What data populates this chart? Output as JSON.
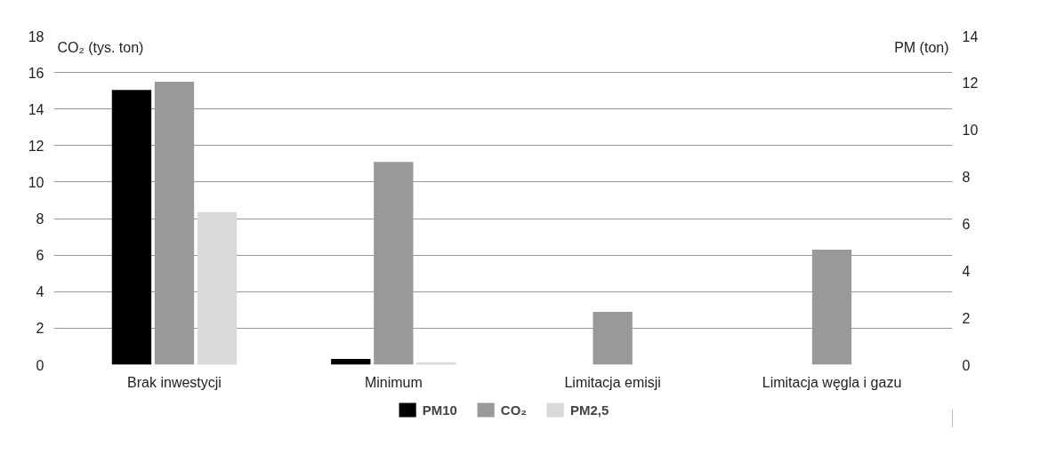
{
  "chart_data": {
    "type": "bar",
    "categories": [
      "Brak inwestycji",
      "Minimum",
      "Limitacja emisji",
      "Limitacja węgla i gazu"
    ],
    "ylabel": "CO₂ (tys. ton)",
    "y2label": "PM (ton)",
    "ylim": [
      0,
      18
    ],
    "yticks": [
      0,
      2,
      4,
      6,
      8,
      10,
      12,
      14,
      16,
      18
    ],
    "y2lim": [
      0,
      14
    ],
    "y2ticks": [
      0,
      2,
      4,
      6,
      8,
      10,
      12,
      14
    ],
    "grid": "y",
    "legend": "bottom",
    "series": [
      {
        "name": "PM10",
        "color": "#000000",
        "axis": "y2",
        "values": [
          11.7,
          0.25,
          null,
          null
        ]
      },
      {
        "name": "CO₂",
        "color": "#999999",
        "values": [
          15.5,
          11.1,
          2.9,
          6.3
        ]
      },
      {
        "name": "PM2,5",
        "color": "#d9d9d9",
        "axis": "y2",
        "values": [
          6.5,
          0.1,
          null,
          null
        ]
      }
    ]
  }
}
